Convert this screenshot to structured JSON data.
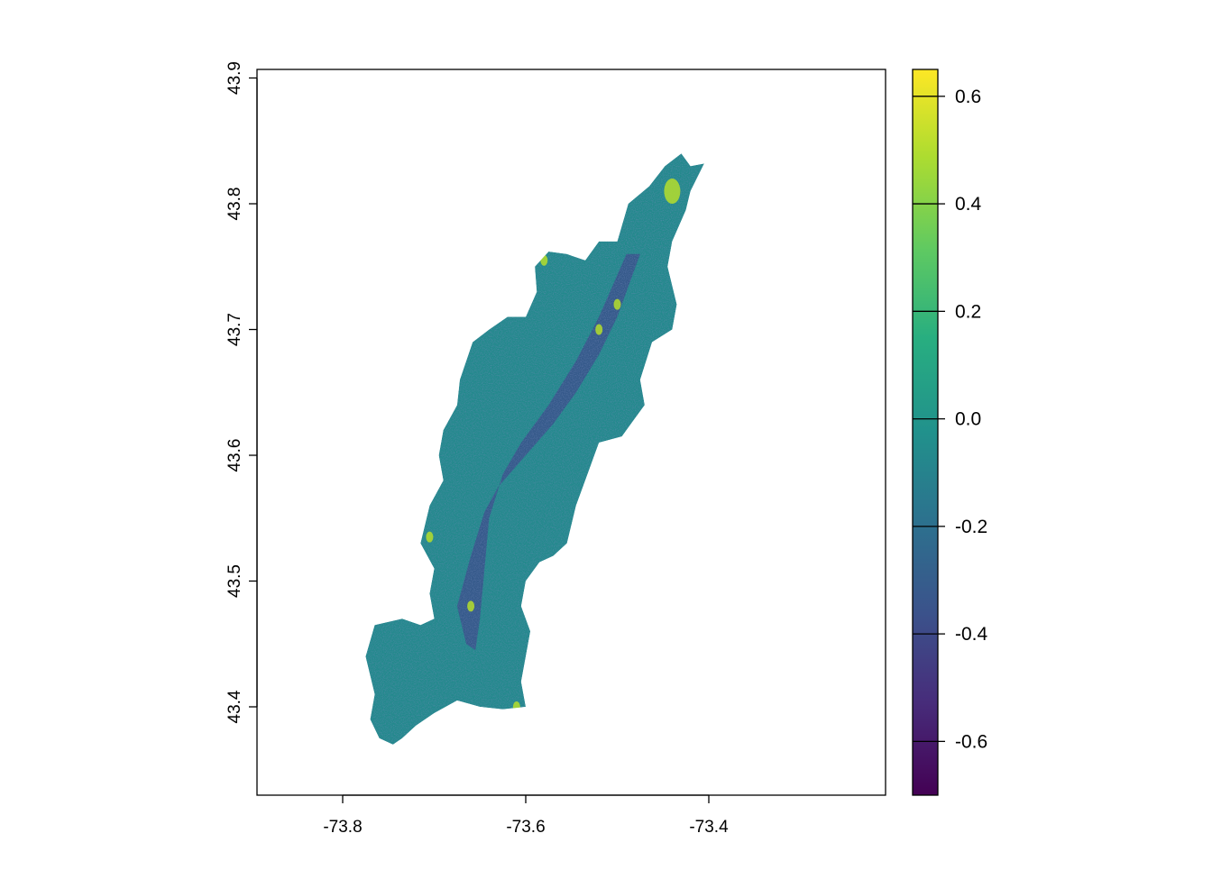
{
  "chart_data": {
    "type": "heatmap",
    "title": "",
    "xlabel": "",
    "ylabel": "",
    "xlim": [
      -73.9,
      -73.2
    ],
    "ylim": [
      43.33,
      43.91
    ],
    "x_ticks": [
      -73.8,
      -73.6,
      -73.4
    ],
    "x_tick_labels": [
      "-73.8",
      "-73.6",
      "-73.4"
    ],
    "y_ticks": [
      43.4,
      43.5,
      43.6,
      43.7,
      43.8,
      43.9
    ],
    "y_tick_labels": [
      "43.4",
      "43.5",
      "43.6",
      "43.7",
      "43.8",
      "43.9"
    ],
    "grid": false,
    "legend": {
      "type": "colorbar",
      "placement": "right",
      "range": [
        -0.7,
        0.65
      ],
      "ticks": [
        0.6,
        0.4,
        0.2,
        0.0,
        -0.2,
        -0.4,
        -0.6
      ],
      "tick_labels": [
        "0.6",
        "0.4",
        "0.2",
        "0.0",
        "-0.2",
        "-0.4",
        "-0.6"
      ]
    },
    "colormap": "viridis",
    "colors": {
      "background": "#ffffff",
      "dominant_raster": "#22898c",
      "low_areas": "#3b4a8a",
      "high_spots": "#b5de2b"
    },
    "outline_lonlat": [
      [
        -73.745,
        43.37
      ],
      [
        -73.76,
        43.375
      ],
      [
        -73.77,
        43.39
      ],
      [
        -73.765,
        43.41
      ],
      [
        -73.775,
        43.44
      ],
      [
        -73.765,
        43.465
      ],
      [
        -73.735,
        43.47
      ],
      [
        -73.715,
        43.465
      ],
      [
        -73.7,
        43.47
      ],
      [
        -73.705,
        43.49
      ],
      [
        -73.7,
        43.51
      ],
      [
        -73.715,
        43.53
      ],
      [
        -73.705,
        43.56
      ],
      [
        -73.69,
        43.58
      ],
      [
        -73.695,
        43.6
      ],
      [
        -73.69,
        43.62
      ],
      [
        -73.675,
        43.64
      ],
      [
        -73.672,
        43.66
      ],
      [
        -73.658,
        43.69
      ],
      [
        -73.64,
        43.7
      ],
      [
        -73.62,
        43.71
      ],
      [
        -73.6,
        43.71
      ],
      [
        -73.588,
        43.73
      ],
      [
        -73.59,
        43.75
      ],
      [
        -73.575,
        43.762
      ],
      [
        -73.555,
        43.76
      ],
      [
        -73.535,
        43.755
      ],
      [
        -73.52,
        43.77
      ],
      [
        -73.5,
        43.77
      ],
      [
        -73.488,
        43.8
      ],
      [
        -73.465,
        43.814
      ],
      [
        -73.448,
        43.83
      ],
      [
        -73.43,
        43.84
      ],
      [
        -73.42,
        43.83
      ],
      [
        -73.405,
        43.832
      ],
      [
        -73.42,
        43.81
      ],
      [
        -73.425,
        43.795
      ],
      [
        -73.44,
        43.77
      ],
      [
        -73.445,
        43.75
      ],
      [
        -73.435,
        43.72
      ],
      [
        -73.44,
        43.7
      ],
      [
        -73.462,
        43.69
      ],
      [
        -73.475,
        43.66
      ],
      [
        -73.47,
        43.64
      ],
      [
        -73.485,
        43.625
      ],
      [
        -73.495,
        43.615
      ],
      [
        -73.52,
        43.61
      ],
      [
        -73.535,
        43.58
      ],
      [
        -73.545,
        43.56
      ],
      [
        -73.555,
        43.53
      ],
      [
        -73.57,
        43.52
      ],
      [
        -73.585,
        43.515
      ],
      [
        -73.6,
        43.5
      ],
      [
        -73.605,
        43.48
      ],
      [
        -73.595,
        43.46
      ],
      [
        -73.6,
        43.44
      ],
      [
        -73.605,
        43.42
      ],
      [
        -73.6,
        43.4
      ],
      [
        -73.625,
        43.398
      ],
      [
        -73.65,
        43.4
      ],
      [
        -73.675,
        43.405
      ],
      [
        -73.7,
        43.395
      ],
      [
        -73.72,
        43.385
      ],
      [
        -73.735,
        43.375
      ]
    ],
    "low_region_lonlat": [
      [
        -73.665,
        43.45
      ],
      [
        -73.675,
        43.48
      ],
      [
        -73.66,
        43.52
      ],
      [
        -73.645,
        43.555
      ],
      [
        -73.63,
        43.575
      ],
      [
        -73.6,
        43.6
      ],
      [
        -73.57,
        43.625
      ],
      [
        -73.545,
        43.65
      ],
      [
        -73.52,
        43.68
      ],
      [
        -73.5,
        43.71
      ],
      [
        -73.485,
        43.74
      ],
      [
        -73.475,
        43.76
      ],
      [
        -73.49,
        43.76
      ],
      [
        -73.505,
        43.735
      ],
      [
        -73.52,
        43.71
      ],
      [
        -73.545,
        43.675
      ],
      [
        -73.575,
        43.64
      ],
      [
        -73.605,
        43.61
      ],
      [
        -73.625,
        43.585
      ],
      [
        -73.64,
        43.55
      ],
      [
        -73.645,
        43.51
      ],
      [
        -73.65,
        43.47
      ],
      [
        -73.655,
        43.445
      ]
    ],
    "bright_spots_lonlat": [
      [
        -73.44,
        43.81
      ],
      [
        -73.705,
        43.535
      ],
      [
        -73.66,
        43.48
      ],
      [
        -73.5,
        43.72
      ],
      [
        -73.52,
        43.7
      ],
      [
        -73.61,
        43.4
      ],
      [
        -73.58,
        43.755
      ]
    ]
  }
}
